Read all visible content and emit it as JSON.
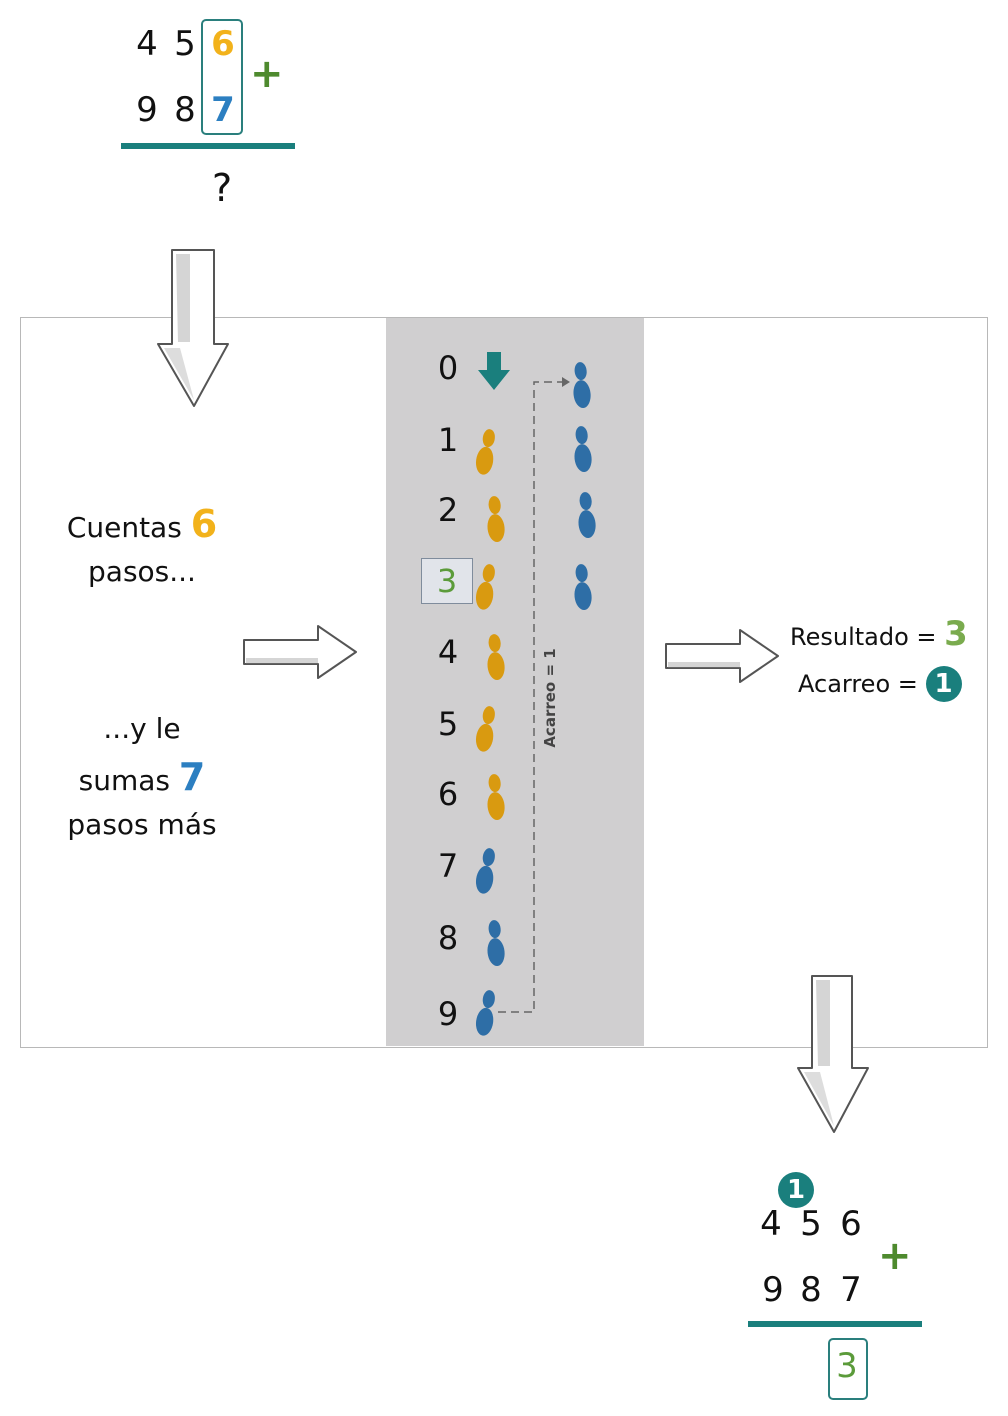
{
  "top_sum": {
    "row1": [
      "4",
      "5",
      "6"
    ],
    "row2": [
      "9",
      "8",
      "7"
    ],
    "operator": "+",
    "result": "?"
  },
  "left_text": {
    "line1_word": "Cuentas",
    "line1_num": "6",
    "line2": "pasos...",
    "line3": "...y le",
    "line4_word": "sumas",
    "line4_num": "7",
    "line5": "pasos más"
  },
  "number_line": [
    "0",
    "1",
    "2",
    "3",
    "4",
    "5",
    "6",
    "7",
    "8",
    "9"
  ],
  "highlighted_number": "3",
  "carry_label": "Acarreo = 1",
  "right_text": {
    "result_label": "Resultado =",
    "result_value": "3",
    "carry_label": "Acarreo =",
    "carry_value": "1"
  },
  "bottom_sum": {
    "carry": "1",
    "row1": [
      "4",
      "5",
      "6"
    ],
    "row2": [
      "9",
      "8",
      "7"
    ],
    "operator": "+",
    "result": "3"
  },
  "colors": {
    "first_addend": "#f2b21b",
    "second_addend": "#2c7fc1",
    "result": "#6aa84f",
    "accent": "#1a7f7d",
    "track": "#d0cfd0"
  }
}
